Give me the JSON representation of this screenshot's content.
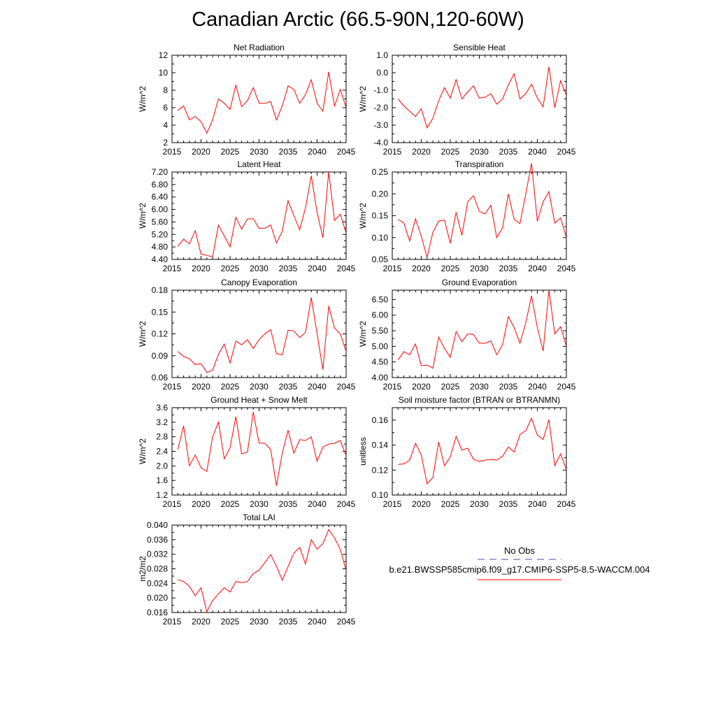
{
  "page_title": "Canadian Arctic (66.5-90N,120-60W)",
  "colors": {
    "series": "#ff0000",
    "obs": "#4b4bb4",
    "axis": "#000000"
  },
  "legend": {
    "obs_label": "No Obs",
    "case_label": "b.e21.BWSSP585cmip6.f09_g17.CMIP6-SSP5-8.5-WACCM.004"
  },
  "chart_data": [
    {
      "type": "line",
      "title": "Net Radiation",
      "ylabel": "W/m^2",
      "xlim": [
        2015,
        2045
      ],
      "ylim": [
        2,
        12
      ],
      "xticks": [
        "2015",
        "2020",
        "2025",
        "2030",
        "2035",
        "2040",
        "2045"
      ],
      "yticks": [
        "2",
        "4",
        "6",
        "8",
        "10",
        "12"
      ],
      "x": [
        2016,
        2017,
        2018,
        2019,
        2020,
        2021,
        2022,
        2023,
        2024,
        2025,
        2026,
        2027,
        2028,
        2029,
        2030,
        2031,
        2032,
        2033,
        2034,
        2035,
        2036,
        2037,
        2038,
        2039,
        2040,
        2041,
        2042,
        2043,
        2044,
        2045
      ],
      "values": [
        5.7,
        6.2,
        4.6,
        5.0,
        4.4,
        3.1,
        4.6,
        7.0,
        6.5,
        5.8,
        8.6,
        6.1,
        6.8,
        8.3,
        6.5,
        6.5,
        6.7,
        4.6,
        6.2,
        8.5,
        8.1,
        6.5,
        7.5,
        9.2,
        6.5,
        5.6,
        10.1,
        6.2,
        8.1,
        6.0
      ]
    },
    {
      "type": "line",
      "title": "Sensible Heat",
      "ylabel": "W/m^2",
      "xlim": [
        2015,
        2045
      ],
      "ylim": [
        -4,
        1
      ],
      "xticks": [
        "2015",
        "2020",
        "2025",
        "2030",
        "2035",
        "2040",
        "2045"
      ],
      "yticks": [
        "-4.0",
        "-3.0",
        "-2.0",
        "-1.0",
        "0.0",
        "1.0"
      ],
      "x": [
        2016,
        2017,
        2018,
        2019,
        2020,
        2021,
        2022,
        2023,
        2024,
        2025,
        2026,
        2027,
        2028,
        2029,
        2030,
        2031,
        2032,
        2033,
        2034,
        2035,
        2036,
        2037,
        2038,
        2039,
        2040,
        2041,
        2042,
        2043,
        2044,
        2045
      ],
      "values": [
        -1.5,
        -1.9,
        -2.2,
        -2.5,
        -2.05,
        -3.15,
        -2.6,
        -1.6,
        -0.85,
        -1.45,
        -0.4,
        -1.5,
        -1.1,
        -0.75,
        -1.45,
        -1.4,
        -1.2,
        -1.8,
        -1.5,
        -0.7,
        -0.05,
        -1.5,
        -1.2,
        -0.65,
        -1.45,
        -1.95,
        0.35,
        -2.0,
        -0.45,
        -1.3
      ]
    },
    {
      "type": "line",
      "title": "Latent Heat",
      "ylabel": "W/m^2",
      "xlim": [
        2015,
        2045
      ],
      "ylim": [
        4.4,
        7.2
      ],
      "xticks": [
        "2015",
        "2020",
        "2025",
        "2030",
        "2035",
        "2040",
        "2045"
      ],
      "yticks": [
        "4.40",
        "4.80",
        "5.20",
        "5.60",
        "6.00",
        "6.40",
        "6.80",
        "7.20"
      ],
      "x": [
        2016,
        2017,
        2018,
        2019,
        2020,
        2021,
        2022,
        2023,
        2024,
        2025,
        2026,
        2027,
        2028,
        2029,
        2030,
        2031,
        2032,
        2033,
        2034,
        2035,
        2036,
        2037,
        2038,
        2039,
        2040,
        2041,
        2042,
        2043,
        2044,
        2045
      ],
      "values": [
        4.82,
        5.05,
        4.9,
        5.32,
        4.57,
        4.53,
        4.48,
        5.5,
        5.15,
        4.8,
        5.75,
        5.37,
        5.7,
        5.7,
        5.4,
        5.4,
        5.5,
        4.93,
        5.3,
        6.28,
        5.8,
        5.35,
        6.05,
        7.08,
        5.9,
        5.1,
        7.2,
        5.65,
        5.85,
        5.25
      ]
    },
    {
      "type": "line",
      "title": "Transpiration",
      "ylabel": "W/m^2",
      "xlim": [
        2015,
        2045
      ],
      "ylim": [
        0.05,
        0.25
      ],
      "xticks": [
        "2015",
        "2020",
        "2025",
        "2030",
        "2035",
        "2040",
        "2045"
      ],
      "yticks": [
        "0.05",
        "0.10",
        "0.15",
        "0.20",
        "0.25"
      ],
      "x": [
        2016,
        2017,
        2018,
        2019,
        2020,
        2021,
        2022,
        2023,
        2024,
        2025,
        2026,
        2027,
        2028,
        2029,
        2030,
        2031,
        2032,
        2033,
        2034,
        2035,
        2036,
        2037,
        2038,
        2039,
        2040,
        2041,
        2042,
        2043,
        2044,
        2045
      ],
      "values": [
        0.142,
        0.133,
        0.092,
        0.143,
        0.103,
        0.055,
        0.112,
        0.138,
        0.14,
        0.087,
        0.158,
        0.105,
        0.182,
        0.196,
        0.16,
        0.154,
        0.174,
        0.1,
        0.122,
        0.2,
        0.142,
        0.132,
        0.2,
        0.27,
        0.137,
        0.182,
        0.205,
        0.133,
        0.145,
        0.1
      ]
    },
    {
      "type": "line",
      "title": "Canopy Evaporation",
      "ylabel": "W/m^2",
      "xlim": [
        2015,
        2045
      ],
      "ylim": [
        0.06,
        0.18
      ],
      "xticks": [
        "2015",
        "2020",
        "2025",
        "2030",
        "2035",
        "2040",
        "2045"
      ],
      "yticks": [
        "0.06",
        "0.09",
        "0.12",
        "0.15",
        "0.18"
      ],
      "x": [
        2016,
        2017,
        2018,
        2019,
        2020,
        2021,
        2022,
        2023,
        2024,
        2025,
        2026,
        2027,
        2028,
        2029,
        2030,
        2031,
        2032,
        2033,
        2034,
        2035,
        2036,
        2037,
        2038,
        2039,
        2040,
        2041,
        2042,
        2043,
        2044,
        2045
      ],
      "values": [
        0.096,
        0.089,
        0.086,
        0.078,
        0.079,
        0.067,
        0.07,
        0.092,
        0.106,
        0.08,
        0.11,
        0.105,
        0.112,
        0.1,
        0.112,
        0.12,
        0.126,
        0.093,
        0.091,
        0.125,
        0.124,
        0.115,
        0.122,
        0.17,
        0.12,
        0.071,
        0.158,
        0.128,
        0.12,
        0.096
      ]
    },
    {
      "type": "line",
      "title": "Ground Evaporation",
      "ylabel": "W/m^2",
      "xlim": [
        2015,
        2045
      ],
      "ylim": [
        4.0,
        6.8
      ],
      "xticks": [
        "2015",
        "2020",
        "2025",
        "2030",
        "2035",
        "2040",
        "2045"
      ],
      "yticks": [
        "4.00",
        "4.50",
        "5.00",
        "5.50",
        "6.00",
        "6.50"
      ],
      "x": [
        2016,
        2017,
        2018,
        2019,
        2020,
        2021,
        2022,
        2023,
        2024,
        2025,
        2026,
        2027,
        2028,
        2029,
        2030,
        2031,
        2032,
        2033,
        2034,
        2035,
        2036,
        2037,
        2038,
        2039,
        2040,
        2041,
        2042,
        2043,
        2044,
        2045
      ],
      "values": [
        4.57,
        4.83,
        4.73,
        5.08,
        4.38,
        4.4,
        4.3,
        5.3,
        4.93,
        4.65,
        5.47,
        5.15,
        5.4,
        5.38,
        5.1,
        5.1,
        5.17,
        4.73,
        5.05,
        5.95,
        5.6,
        5.1,
        5.75,
        6.62,
        5.6,
        4.85,
        6.8,
        5.4,
        5.63,
        5.0
      ]
    },
    {
      "type": "line",
      "title": "Ground Heat + Snow Melt",
      "ylabel": "W/m^2",
      "xlim": [
        2015,
        2045
      ],
      "ylim": [
        1.2,
        3.6
      ],
      "xticks": [
        "2015",
        "2020",
        "2025",
        "2030",
        "2035",
        "2040",
        "2045"
      ],
      "yticks": [
        "1.2",
        "1.6",
        "2.0",
        "2.4",
        "2.8",
        "3.2",
        "3.6"
      ],
      "x": [
        2016,
        2017,
        2018,
        2019,
        2020,
        2021,
        2022,
        2023,
        2024,
        2025,
        2026,
        2027,
        2028,
        2029,
        2030,
        2031,
        2032,
        2033,
        2034,
        2035,
        2036,
        2037,
        2038,
        2039,
        2040,
        2041,
        2042,
        2043,
        2044,
        2045
      ],
      "values": [
        2.45,
        3.1,
        2.0,
        2.3,
        1.95,
        1.85,
        2.8,
        3.2,
        2.2,
        2.5,
        3.35,
        2.33,
        2.38,
        3.48,
        2.63,
        2.62,
        2.45,
        1.46,
        2.35,
        2.98,
        2.35,
        2.72,
        2.7,
        2.8,
        2.13,
        2.52,
        2.6,
        2.62,
        2.7,
        2.28
      ]
    },
    {
      "type": "line",
      "title": "Soil moisture factor (BTRAN or BTRANMN)",
      "ylabel": "unitless",
      "xlim": [
        2015,
        2045
      ],
      "ylim": [
        0.1,
        0.17
      ],
      "xticks": [
        "2015",
        "2020",
        "2025",
        "2030",
        "2035",
        "2040",
        "2045"
      ],
      "yticks": [
        "0.10",
        "0.12",
        "0.14",
        "0.16"
      ],
      "x": [
        2016,
        2017,
        2018,
        2019,
        2020,
        2021,
        2022,
        2023,
        2024,
        2025,
        2026,
        2027,
        2028,
        2029,
        2030,
        2031,
        2032,
        2033,
        2034,
        2035,
        2036,
        2037,
        2038,
        2039,
        2040,
        2041,
        2042,
        2043,
        2044,
        2045
      ],
      "values": [
        0.1245,
        0.125,
        0.128,
        0.1415,
        0.132,
        0.109,
        0.114,
        0.1425,
        0.1235,
        0.1305,
        0.147,
        0.136,
        0.1375,
        0.1285,
        0.127,
        0.128,
        0.1285,
        0.128,
        0.131,
        0.1385,
        0.1345,
        0.1485,
        0.1515,
        0.1615,
        0.148,
        0.1445,
        0.1605,
        0.1235,
        0.133,
        0.1205
      ]
    },
    {
      "type": "line",
      "title": "Total LAI",
      "ylabel": "m2/m2",
      "xlim": [
        2015,
        2045
      ],
      "ylim": [
        0.016,
        0.04
      ],
      "xticks": [
        "2015",
        "2020",
        "2025",
        "2030",
        "2035",
        "2040",
        "2045"
      ],
      "yticks": [
        "0.016",
        "0.020",
        "0.024",
        "0.028",
        "0.032",
        "0.036",
        "0.040"
      ],
      "x": [
        2016,
        2017,
        2018,
        2019,
        2020,
        2021,
        2022,
        2023,
        2024,
        2025,
        2026,
        2027,
        2028,
        2029,
        2030,
        2031,
        2032,
        2033,
        2034,
        2035,
        2036,
        2037,
        2038,
        2039,
        2040,
        2041,
        2042,
        2043,
        2044,
        2045
      ],
      "values": [
        0.025,
        0.0245,
        0.0232,
        0.0206,
        0.0228,
        0.0162,
        0.0193,
        0.0211,
        0.0228,
        0.0216,
        0.0245,
        0.0242,
        0.0245,
        0.0267,
        0.0276,
        0.0297,
        0.0319,
        0.0287,
        0.0249,
        0.0286,
        0.0323,
        0.0339,
        0.0293,
        0.036,
        0.0334,
        0.0349,
        0.0388,
        0.0365,
        0.0333,
        0.0275
      ]
    }
  ]
}
